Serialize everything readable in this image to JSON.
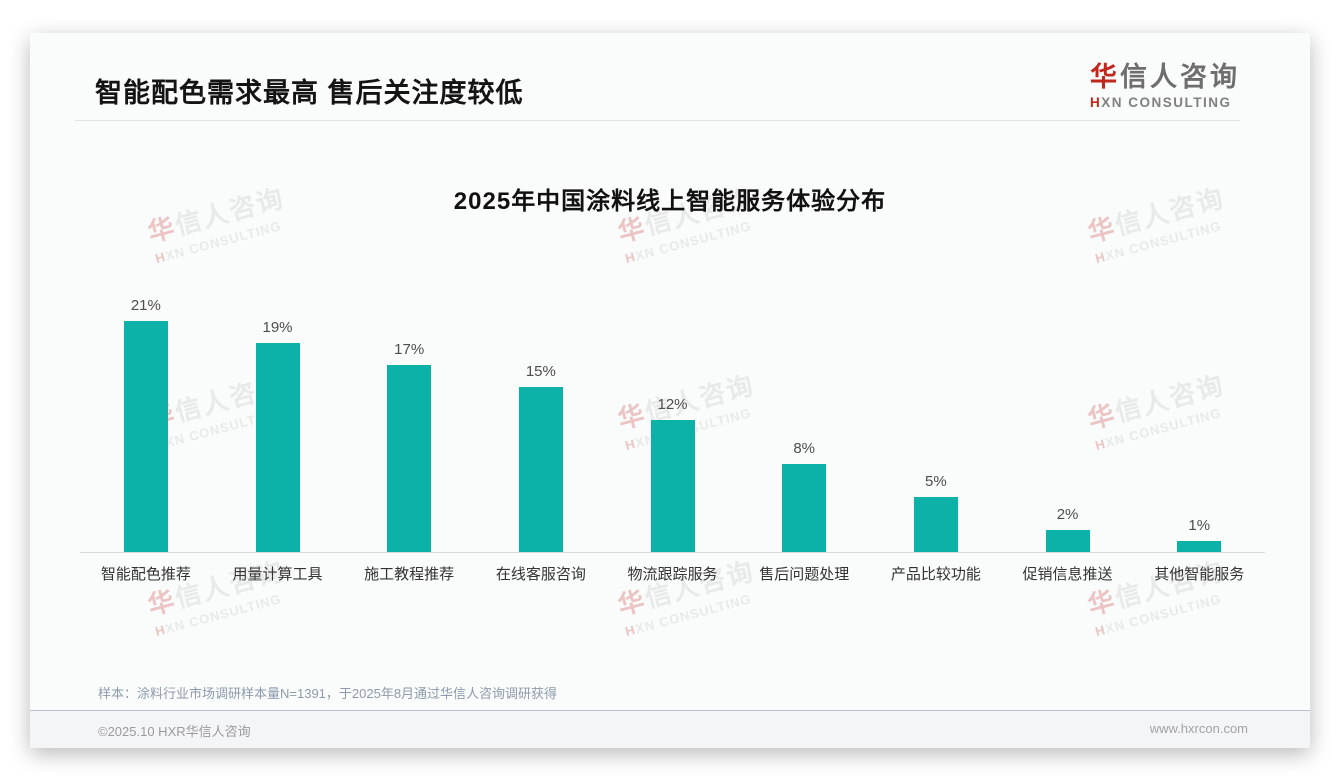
{
  "page": {
    "title": "智能配色需求最高 售后关注度较低",
    "logo": {
      "cn_first": "华",
      "cn_rest": "信人咨询",
      "en_first": "H",
      "en_rest": "XN CONSULTING"
    },
    "note": "样本：涂料行业市场调研样本量N=1391，于2025年8月通过华信人咨询调研获得",
    "footer": {
      "left": "©2025.10 HXR华信人咨询",
      "right": "www.hxrcon.com"
    },
    "watermark": {
      "cn_first": "华",
      "cn_rest": "信人咨询",
      "en_first": "H",
      "en_rest": "XN CONSULTING"
    }
  },
  "chart_data": {
    "type": "bar",
    "title": "2025年中国涂料线上智能服务体验分布",
    "categories": [
      "智能配色推荐",
      "用量计算工具",
      "施工教程推荐",
      "在线客服咨询",
      "物流跟踪服务",
      "售后问题处理",
      "产品比较功能",
      "促销信息推送",
      "其他智能服务"
    ],
    "values": [
      21,
      19,
      17,
      15,
      12,
      8,
      5,
      2,
      1
    ],
    "value_labels": [
      "21%",
      "19%",
      "17%",
      "15%",
      "12%",
      "8%",
      "5%",
      "2%",
      "1%"
    ],
    "unit": "%",
    "bar_color": "#0cb2a8",
    "ylim": [
      0,
      23
    ],
    "xlabel": "",
    "ylabel": "",
    "grid": false,
    "legend": false
  }
}
